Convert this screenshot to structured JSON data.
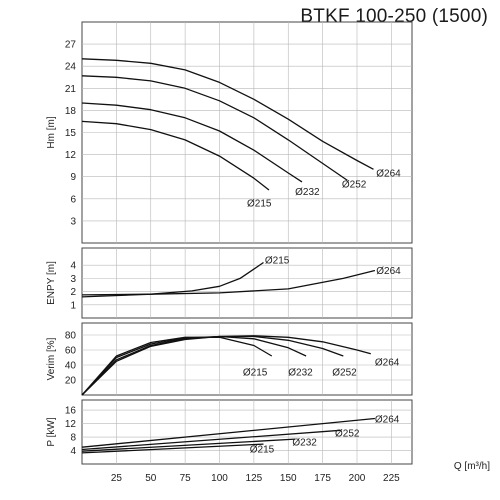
{
  "title": "BTKF 100-250 (1500)",
  "chart_data": {
    "type": "line",
    "title": "BTKF 100-250 (1500)",
    "x": {
      "label": "Q [m³/h]",
      "ticks": [
        25,
        50,
        75,
        100,
        125,
        150,
        175,
        200,
        225
      ],
      "range": [
        0,
        240
      ]
    },
    "panels": [
      {
        "id": "head",
        "ylabel": "Hm [m]",
        "ylim": [
          0,
          30
        ],
        "yticks": [
          3,
          6,
          9,
          12,
          15,
          18,
          21,
          24,
          27
        ],
        "series": [
          {
            "name": "Ø264",
            "x": [
              0,
              25,
              50,
              75,
              100,
              125,
              150,
              175,
              200,
              212
            ],
            "y": [
              25.0,
              24.8,
              24.4,
              23.5,
              21.8,
              19.5,
              16.8,
              13.8,
              11.2,
              10.0
            ]
          },
          {
            "name": "Ø252",
            "x": [
              0,
              25,
              50,
              75,
              100,
              125,
              150,
              175,
              193
            ],
            "y": [
              22.7,
              22.5,
              22.0,
              21.0,
              19.3,
              17.0,
              14.0,
              10.8,
              8.5
            ]
          },
          {
            "name": "Ø232",
            "x": [
              0,
              25,
              50,
              75,
              100,
              125,
              150,
              160
            ],
            "y": [
              19.0,
              18.7,
              18.1,
              17.0,
              15.2,
              12.6,
              9.5,
              8.3
            ]
          },
          {
            "name": "Ø215",
            "x": [
              0,
              25,
              50,
              75,
              100,
              125,
              136
            ],
            "y": [
              16.5,
              16.2,
              15.4,
              14.0,
              11.8,
              8.8,
              7.2
            ]
          }
        ],
        "labels": [
          {
            "text": "Ø264",
            "x": 214,
            "y": 9.5
          },
          {
            "text": "Ø252",
            "x": 189,
            "y": 8.0
          },
          {
            "text": "Ø232",
            "x": 155,
            "y": 7.0
          },
          {
            "text": "Ø215",
            "x": 120,
            "y": 5.4
          }
        ]
      },
      {
        "id": "npsh",
        "ylabel": "ENPY [m]",
        "ylim": [
          0,
          5.3
        ],
        "yticks": [
          1,
          2,
          3,
          4
        ],
        "series": [
          {
            "name": "Ø264",
            "x": [
              0,
              50,
              100,
              150,
              190,
              213
            ],
            "y": [
              1.75,
              1.8,
              1.9,
              2.2,
              3.0,
              3.6
            ]
          },
          {
            "name": "Ø215",
            "x": [
              0,
              50,
              80,
              100,
              115,
              125,
              132
            ],
            "y": [
              1.6,
              1.8,
              2.05,
              2.4,
              3.0,
              3.7,
              4.2
            ]
          }
        ],
        "labels": [
          {
            "text": "Ø215",
            "x": 133,
            "y": 4.4
          },
          {
            "text": "Ø264",
            "x": 214,
            "y": 3.6
          }
        ]
      },
      {
        "id": "efficiency",
        "ylabel": "Verim [%]",
        "ylim": [
          0,
          96
        ],
        "yticks": [
          20,
          40,
          60,
          80
        ],
        "series": [
          {
            "name": "Ø264",
            "x": [
              0,
              25,
              50,
              75,
              100,
              125,
              150,
              175,
              200,
              210
            ],
            "y": [
              0,
              45,
              65,
              74,
              78,
              79,
              77,
              71,
              60,
              55
            ]
          },
          {
            "name": "Ø252",
            "x": [
              0,
              25,
              50,
              75,
              100,
              125,
              150,
              175,
              190
            ],
            "y": [
              0,
              47,
              66,
              75,
              78,
              78,
              73,
              62,
              52
            ]
          },
          {
            "name": "Ø232",
            "x": [
              0,
              25,
              50,
              75,
              100,
              125,
              150,
              163
            ],
            "y": [
              0,
              50,
              68,
              76,
              78,
              75,
              63,
              52
            ]
          },
          {
            "name": "Ø215",
            "x": [
              0,
              25,
              50,
              75,
              100,
              125,
              138
            ],
            "y": [
              0,
              52,
              70,
              77,
              77,
              66,
              52
            ]
          }
        ],
        "labels": [
          {
            "text": "Ø215",
            "x": 117,
            "y": 31
          },
          {
            "text": "Ø232",
            "x": 150,
            "y": 31
          },
          {
            "text": "Ø252",
            "x": 182,
            "y": 31
          },
          {
            "text": "Ø264",
            "x": 213,
            "y": 44
          }
        ]
      },
      {
        "id": "power",
        "ylabel": "P [kW]",
        "ylim": [
          0,
          19
        ],
        "yticks": [
          4,
          8,
          12,
          16
        ],
        "series": [
          {
            "name": "Ø264",
            "x": [
              0,
              213
            ],
            "y": [
              5.0,
              13.5
            ]
          },
          {
            "name": "Ø252",
            "x": [
              0,
              188
            ],
            "y": [
              4.3,
              10.0
            ]
          },
          {
            "name": "Ø232",
            "x": [
              0,
              155
            ],
            "y": [
              3.8,
              7.4
            ]
          },
          {
            "name": "Ø215",
            "x": [
              0,
              132
            ],
            "y": [
              3.3,
              5.9
            ]
          }
        ],
        "labels": [
          {
            "text": "Ø264",
            "x": 213,
            "y": 13.3
          },
          {
            "text": "Ø252",
            "x": 184,
            "y": 9.2
          },
          {
            "text": "Ø232",
            "x": 153,
            "y": 6.6
          },
          {
            "text": "Ø215",
            "x": 122,
            "y": 4.5
          }
        ]
      }
    ]
  }
}
